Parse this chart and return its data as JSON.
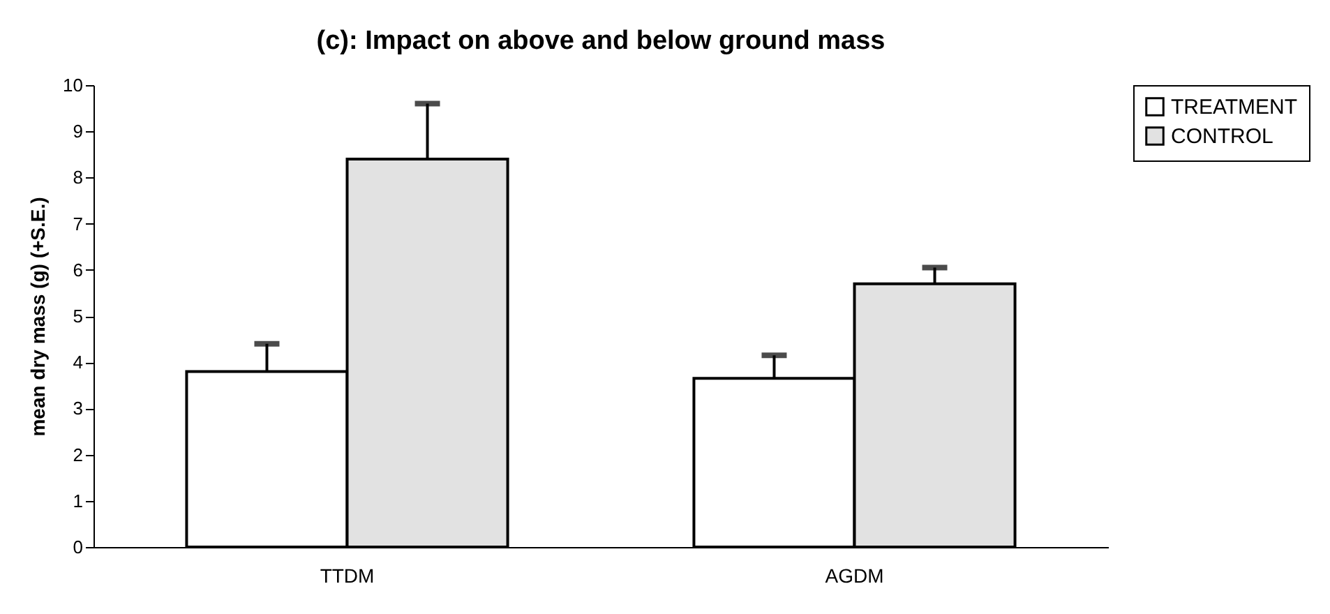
{
  "chart_data": {
    "type": "bar",
    "title": "(c): Impact on above and below ground mass",
    "ylabel": "mean dry mass (g) (+S.E.)",
    "categories": [
      "TTDM",
      "AGDM"
    ],
    "series": [
      {
        "name": "TREATMENT",
        "color": "#ffffff",
        "values": [
          3.8,
          3.65
        ],
        "errors": [
          [
            3.8,
            4.4
          ],
          [
            3.65,
            4.15
          ]
        ]
      },
      {
        "name": "CONTROL",
        "color": "#e2e2e2",
        "values": [
          8.4,
          5.7
        ],
        "errors": [
          [
            8.4,
            9.6
          ],
          [
            5.7,
            6.05
          ]
        ]
      }
    ],
    "ylim": [
      0,
      10
    ],
    "yticks": [
      0,
      1,
      2,
      3,
      4,
      5,
      6,
      7,
      8,
      9,
      10
    ],
    "grid": false,
    "legend": "right"
  }
}
